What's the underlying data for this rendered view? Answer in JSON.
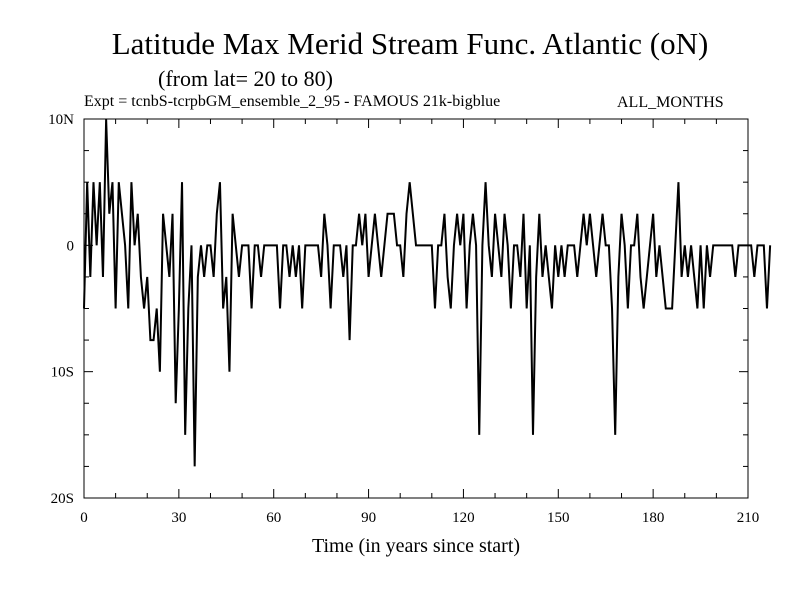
{
  "chart_data": {
    "type": "line",
    "title": "Latitude Max Merid Stream Func. Atlantic (oN)",
    "subtitle": "(from lat= 20 to 80)",
    "experiment": "Expt = tcnbS-tcrpbGM_ensemble_2_95 - FAMOUS 21k-bigblue",
    "period": "ALL_MONTHS",
    "xlabel": "Time (in years since start)",
    "ylabel": "",
    "xlim": [
      0,
      210
    ],
    "ylim": [
      -20,
      10
    ],
    "x_ticks": [
      0,
      30,
      60,
      90,
      120,
      150,
      180,
      210
    ],
    "x_tick_labels": [
      "0",
      "30",
      "60",
      "90",
      "120",
      "150",
      "180",
      "210"
    ],
    "y_ticks": [
      10,
      0,
      -10,
      -20
    ],
    "y_tick_labels": [
      "10N",
      "0",
      "10S",
      "20S"
    ],
    "series": [
      {
        "name": "Latitude Max Merid Stream Func",
        "x_start": 0,
        "x_step": 1,
        "values": [
          -5,
          5,
          -2.5,
          5,
          0,
          5,
          -2.5,
          10,
          2.5,
          5,
          -5,
          5,
          2.5,
          0,
          -5,
          5,
          0,
          2.5,
          -2.5,
          -5,
          -2.5,
          -7.5,
          -7.5,
          -5,
          -10,
          2.5,
          0,
          -2.5,
          2.5,
          -12.5,
          -5,
          5,
          -15,
          -5,
          0,
          -17.5,
          -2.5,
          0,
          -2.5,
          0,
          0,
          -2.5,
          2.5,
          5,
          -5,
          -2.5,
          -10,
          2.5,
          0,
          -2.5,
          0,
          0,
          0,
          -5,
          0,
          0,
          -2.5,
          0,
          0,
          0,
          0,
          0,
          -5,
          0,
          0,
          -2.5,
          0,
          -2.5,
          0,
          -5,
          0,
          0,
          0,
          0,
          0,
          -2.5,
          2.5,
          0,
          -5,
          0,
          0,
          0,
          -2.5,
          0,
          -7.5,
          0,
          0,
          2.5,
          0,
          2.5,
          -2.5,
          0,
          2.5,
          0,
          -2.5,
          0,
          2.5,
          2.5,
          2.5,
          0,
          0,
          -2.5,
          2.5,
          5,
          2.5,
          0,
          0,
          0,
          0,
          0,
          0,
          -5,
          0,
          0,
          2.5,
          -2.5,
          -5,
          0,
          2.5,
          0,
          2.5,
          -5,
          0,
          2.5,
          0,
          -15,
          0,
          5,
          0,
          -2.5,
          2.5,
          0,
          -2.5,
          2.5,
          0,
          -5,
          0,
          0,
          -2.5,
          2.5,
          -5,
          0,
          -15,
          -2.5,
          2.5,
          -2.5,
          0,
          -2.5,
          -5,
          0,
          -2.5,
          0,
          -2.5,
          0,
          0,
          0,
          -2.5,
          0,
          2.5,
          0,
          2.5,
          0,
          -2.5,
          0,
          2.5,
          0,
          0,
          -5,
          -15,
          -2.5,
          2.5,
          0,
          -5,
          0,
          0,
          2.5,
          -2.5,
          -5,
          -2.5,
          0,
          2.5,
          -2.5,
          0,
          -2.5,
          -5,
          -5,
          -5,
          0,
          5,
          -2.5,
          0,
          -2.5,
          0,
          -2.5,
          -5,
          0,
          -5,
          0,
          -2.5,
          0,
          0,
          0,
          0,
          0,
          0,
          0,
          -2.5,
          0,
          0,
          0,
          0,
          0,
          -2.5,
          0,
          0,
          0,
          -5,
          0
        ]
      }
    ]
  }
}
